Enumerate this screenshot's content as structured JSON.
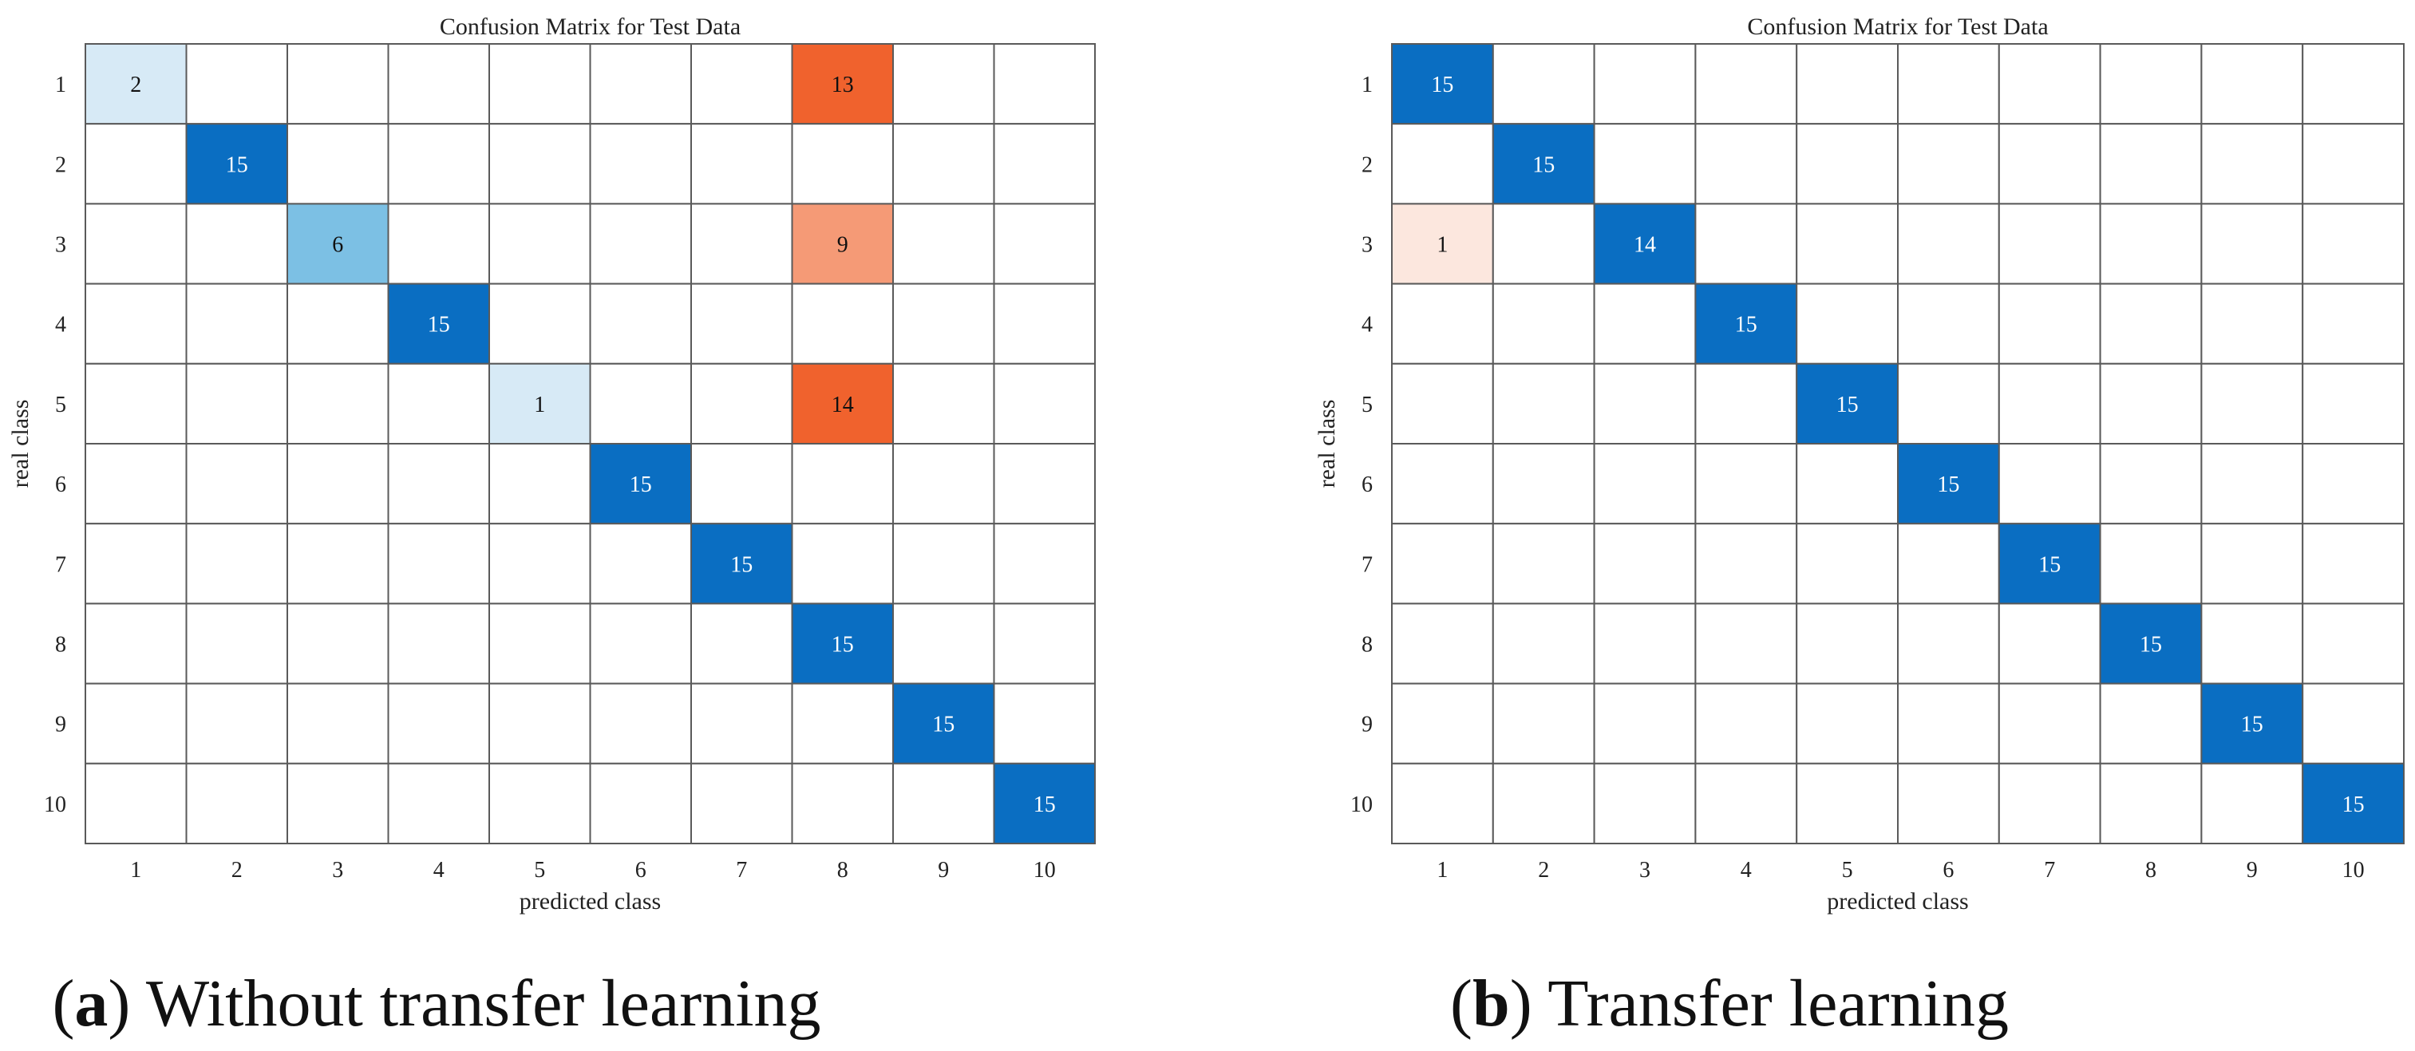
{
  "chart_data": [
    {
      "type": "heatmap",
      "title": "Confusion Matrix for Test Data",
      "xlabel": "predicted class",
      "ylabel": "real class",
      "caption_letter": "a",
      "caption_text": ") Without transfer learning",
      "caption_open": "(",
      "x_categories": [
        "1",
        "2",
        "3",
        "4",
        "5",
        "6",
        "7",
        "8",
        "9",
        "10"
      ],
      "y_categories": [
        "1",
        "2",
        "3",
        "4",
        "5",
        "6",
        "7",
        "8",
        "9",
        "10"
      ],
      "matrix": [
        [
          2,
          0,
          0,
          0,
          0,
          0,
          0,
          13,
          0,
          0
        ],
        [
          0,
          15,
          0,
          0,
          0,
          0,
          0,
          0,
          0,
          0
        ],
        [
          0,
          0,
          6,
          0,
          0,
          0,
          0,
          9,
          0,
          0
        ],
        [
          0,
          0,
          0,
          15,
          0,
          0,
          0,
          0,
          0,
          0
        ],
        [
          0,
          0,
          0,
          0,
          1,
          0,
          0,
          14,
          0,
          0
        ],
        [
          0,
          0,
          0,
          0,
          0,
          15,
          0,
          0,
          0,
          0
        ],
        [
          0,
          0,
          0,
          0,
          0,
          0,
          15,
          0,
          0,
          0
        ],
        [
          0,
          0,
          0,
          0,
          0,
          0,
          0,
          15,
          0,
          0
        ],
        [
          0,
          0,
          0,
          0,
          0,
          0,
          0,
          0,
          15,
          0
        ],
        [
          0,
          0,
          0,
          0,
          0,
          0,
          0,
          0,
          0,
          15
        ]
      ]
    },
    {
      "type": "heatmap",
      "title": "Confusion Matrix for Test Data",
      "xlabel": "predicted class",
      "ylabel": "real class",
      "caption_letter": "b",
      "caption_text": ") Transfer learning",
      "caption_open": "(",
      "x_categories": [
        "1",
        "2",
        "3",
        "4",
        "5",
        "6",
        "7",
        "8",
        "9",
        "10"
      ],
      "y_categories": [
        "1",
        "2",
        "3",
        "4",
        "5",
        "6",
        "7",
        "8",
        "9",
        "10"
      ],
      "matrix": [
        [
          15,
          0,
          0,
          0,
          0,
          0,
          0,
          0,
          0,
          0
        ],
        [
          0,
          15,
          0,
          0,
          0,
          0,
          0,
          0,
          0,
          0
        ],
        [
          1,
          0,
          14,
          0,
          0,
          0,
          0,
          0,
          0,
          0
        ],
        [
          0,
          0,
          0,
          15,
          0,
          0,
          0,
          0,
          0,
          0
        ],
        [
          0,
          0,
          0,
          0,
          15,
          0,
          0,
          0,
          0,
          0
        ],
        [
          0,
          0,
          0,
          0,
          0,
          15,
          0,
          0,
          0,
          0
        ],
        [
          0,
          0,
          0,
          0,
          0,
          0,
          15,
          0,
          0,
          0
        ],
        [
          0,
          0,
          0,
          0,
          0,
          0,
          0,
          15,
          0,
          0
        ],
        [
          0,
          0,
          0,
          0,
          0,
          0,
          0,
          0,
          15,
          0
        ],
        [
          0,
          0,
          0,
          0,
          0,
          0,
          0,
          0,
          0,
          15
        ]
      ]
    }
  ],
  "colors": {
    "diagonal_strong": "#0A6EC2",
    "diagonal_mid": "#3D8FD1",
    "diagonal_light": "#7CC0E4",
    "diagonal_faint": "#D7EAF6",
    "offdiag_strong": "#F0622D",
    "offdiag_mid": "#F59A76",
    "offdiag_faint": "#FCE7DE",
    "grid": "#5A5A5A",
    "text": "#222222"
  }
}
